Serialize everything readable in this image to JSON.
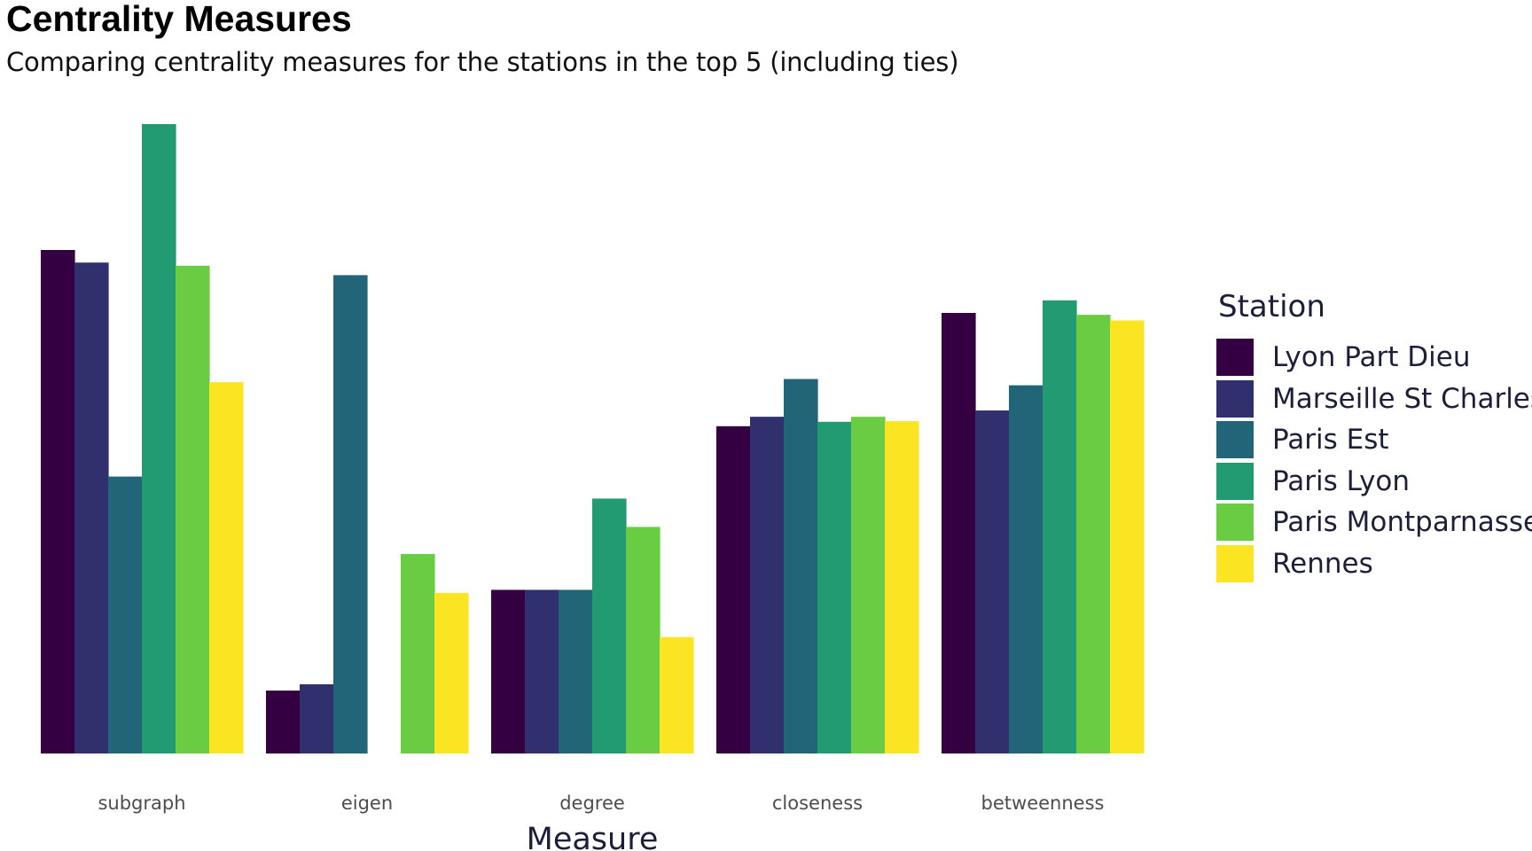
{
  "chart_data": {
    "type": "bar",
    "title": "Centrality Measures",
    "subtitle": "Comparing centrality measures for the stations in the top 5 (including ties)",
    "xlabel": "Measure",
    "ylabel": "",
    "legend_title": "Station",
    "legend_position": "right",
    "grid": false,
    "y_axis_shown": false,
    "ylim": [
      0,
      1
    ],
    "categories": [
      "subgraph",
      "eigen",
      "degree",
      "closeness",
      "betweenness"
    ],
    "series": [
      {
        "name": "Lyon Part Dieu",
        "color": "#350042",
        "values": [
          0.8,
          0.1,
          0.26,
          0.52,
          0.7
        ]
      },
      {
        "name": "Marseille St Charles",
        "color": "#30306e",
        "values": [
          0.78,
          0.11,
          0.26,
          0.535,
          0.545
        ]
      },
      {
        "name": "Paris Est",
        "color": "#226478",
        "values": [
          0.44,
          0.76,
          0.26,
          0.595,
          0.585
        ]
      },
      {
        "name": "Paris Lyon",
        "color": "#229b72",
        "values": [
          1.0,
          0.0,
          0.405,
          0.527,
          0.72
        ]
      },
      {
        "name": "Paris Montparnasse",
        "color": "#6acc42",
        "values": [
          0.775,
          0.317,
          0.36,
          0.535,
          0.697
        ]
      },
      {
        "name": "Rennes",
        "color": "#fbe522",
        "values": [
          0.59,
          0.255,
          0.185,
          0.528,
          0.688
        ]
      }
    ]
  }
}
